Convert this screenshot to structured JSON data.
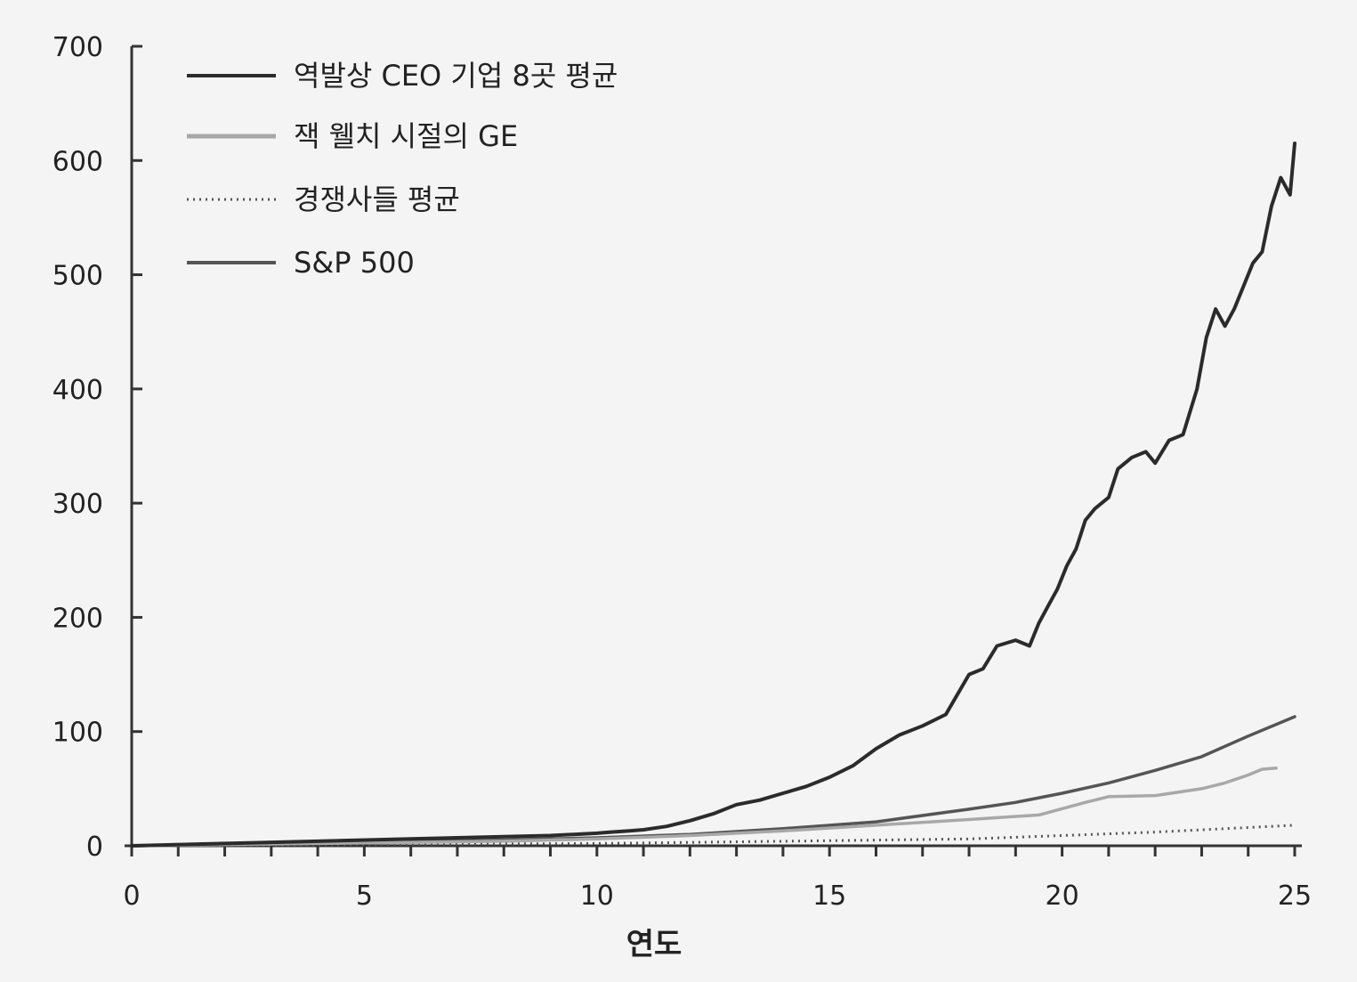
{
  "chart_data": {
    "type": "line",
    "title": "",
    "xlabel": "연도",
    "ylabel": "",
    "xlim": [
      0,
      25
    ],
    "ylim": [
      0,
      700
    ],
    "xticks": [
      0,
      5,
      10,
      15,
      20,
      25
    ],
    "xtick_labels": [
      "0",
      "5",
      "10",
      "15",
      "20",
      "25"
    ],
    "yticks": [
      0,
      100,
      200,
      300,
      400,
      500,
      600,
      700
    ],
    "ytick_labels": [
      "0",
      "100",
      "200",
      "300",
      "400",
      "500",
      "600",
      "700"
    ],
    "grid": false,
    "legend_position": "top-left",
    "series": [
      {
        "name": "역발상 CEO 기업 8곳 평균",
        "color": "#2b2b2b",
        "style": "solid",
        "x": [
          0,
          2,
          4,
          6,
          8,
          9,
          9.5,
          10,
          10.3,
          10.7,
          11,
          11.5,
          12,
          12.5,
          13,
          13.5,
          14,
          14.5,
          15,
          15.5,
          16,
          16.5,
          17,
          17.5,
          18,
          18.3,
          18.6,
          19,
          19.3,
          19.5,
          19.7,
          19.9,
          20.1,
          20.3,
          20.5,
          20.7,
          21,
          21.2,
          21.5,
          21.8,
          22,
          22.3,
          22.6,
          22.9,
          23.1,
          23.3,
          23.5,
          23.7,
          23.9,
          24.1,
          24.3,
          24.5,
          24.7,
          24.9,
          25
        ],
        "values": [
          0,
          2,
          4,
          6,
          8,
          9,
          10,
          11,
          12,
          13,
          14,
          17,
          22,
          28,
          36,
          40,
          46,
          52,
          60,
          70,
          85,
          97,
          105,
          115,
          150,
          155,
          175,
          180,
          175,
          195,
          210,
          225,
          245,
          260,
          285,
          295,
          305,
          330,
          340,
          345,
          335,
          355,
          360,
          400,
          445,
          470,
          455,
          470,
          490,
          510,
          520,
          560,
          585,
          570,
          615
        ]
      },
      {
        "name": "잭 웰치 시절의 GE",
        "color": "#a8a8a8",
        "style": "solid",
        "x": [
          0,
          4,
          8,
          10,
          12,
          14,
          16,
          18,
          19.5,
          20.5,
          21,
          22,
          23,
          23.5,
          24,
          24.3,
          24.6
        ],
        "values": [
          0,
          2,
          4,
          6,
          9,
          13,
          18,
          23,
          27,
          38,
          43,
          44,
          50,
          55,
          62,
          67,
          68
        ]
      },
      {
        "name": "경쟁사들 평균",
        "color": "#555555",
        "style": "dotted",
        "x": [
          0,
          5,
          10,
          12,
          14,
          16,
          18,
          20,
          22,
          24,
          25
        ],
        "values": [
          0,
          1,
          2,
          3,
          4,
          5,
          6,
          9,
          12,
          16,
          18
        ]
      },
      {
        "name": "S&P 500",
        "color": "#555555",
        "style": "solid",
        "x": [
          0,
          4,
          8,
          10,
          12,
          14,
          16,
          18,
          19,
          20,
          21,
          22,
          23,
          24,
          25
        ],
        "values": [
          0,
          2,
          5,
          7,
          10,
          15,
          21,
          32,
          38,
          46,
          55,
          66,
          78,
          96,
          113
        ]
      }
    ]
  }
}
